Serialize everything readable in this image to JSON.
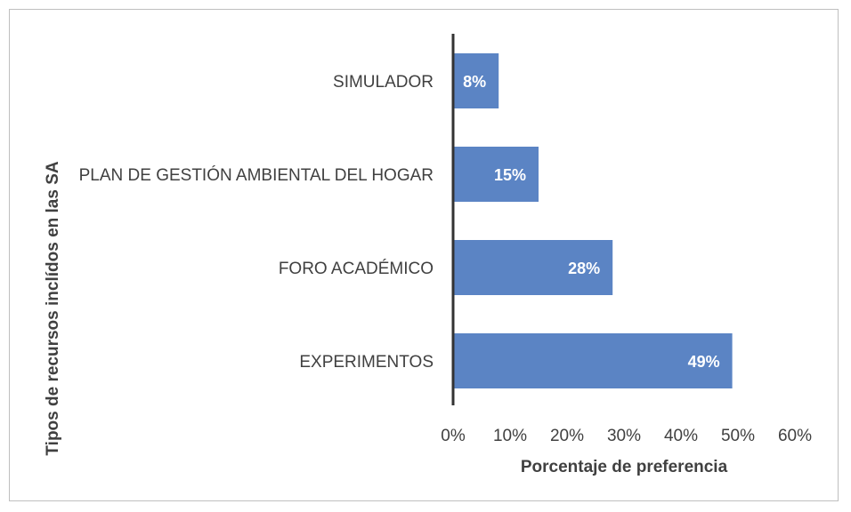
{
  "chart_data": {
    "type": "bar",
    "orientation": "horizontal",
    "categories": [
      "SIMULADOR",
      "PLAN DE GESTIÓN AMBIENTAL DEL HOGAR",
      "FORO ACADÉMICO",
      "EXPERIMENTOS"
    ],
    "values": [
      8,
      15,
      28,
      49
    ],
    "data_labels": [
      "8%",
      "15%",
      "28%",
      "49%"
    ],
    "xlabel": "Porcentaje de preferencia",
    "ylabel": "Tipos de recursos inclídos en las SA",
    "xlim": [
      0,
      60
    ],
    "x_ticks": [
      0,
      10,
      20,
      30,
      40,
      50,
      60
    ],
    "x_tick_labels": [
      "0%",
      "10%",
      "20%",
      "30%",
      "40%",
      "50%",
      "60%"
    ],
    "grid": false,
    "legend": "none",
    "bar_color": "#5b84c4",
    "axis_color": "#333333"
  }
}
